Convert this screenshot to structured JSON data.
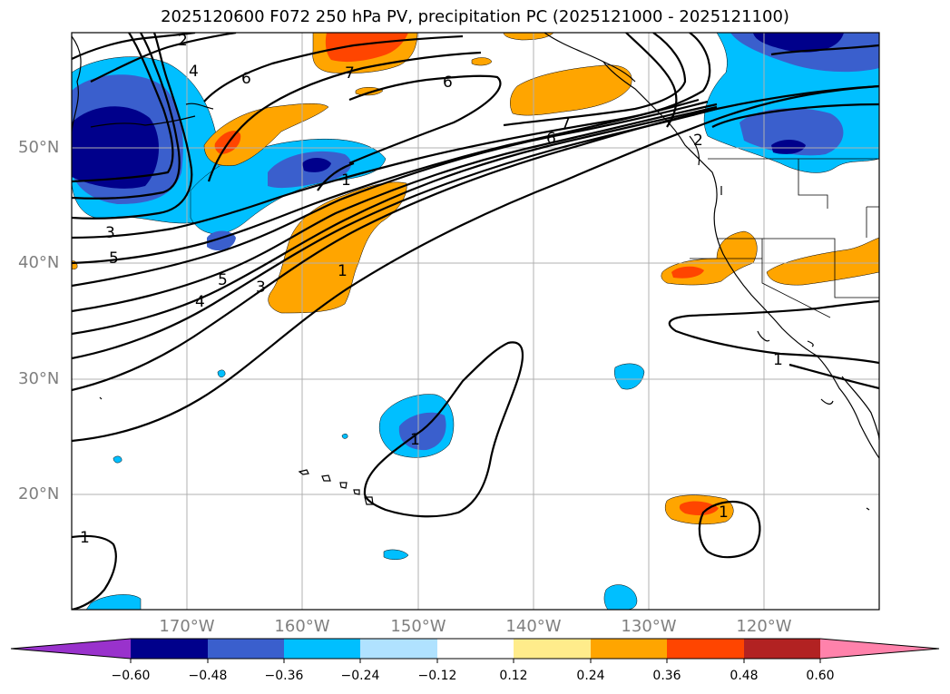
{
  "title": "2025120600 F072 250 hPa PV, precipitation PC (2025121000 - 2025121100)",
  "map": {
    "latitude_labels": [
      "50°N",
      "40°N",
      "30°N",
      "20°N"
    ],
    "longitude_labels": [
      "170°W",
      "160°W",
      "150°W",
      "140°W",
      "130°W",
      "120°W"
    ],
    "pv_contour_labels": [
      "2",
      "4",
      "6",
      "7",
      "6",
      "7",
      "6",
      "2",
      "3",
      "5",
      "1",
      "5",
      "3",
      "4",
      "1",
      "1",
      "1",
      "1",
      "1"
    ]
  },
  "colorbar": {
    "ticks": [
      "−0.60",
      "−0.48",
      "−0.36",
      "−0.24",
      "−0.12",
      "0.12",
      "0.24",
      "0.36",
      "0.48",
      "0.60"
    ],
    "colors": [
      "#9932CC",
      "#00008B",
      "#3A5FCD",
      "#00BFFF",
      "#B0E2FF",
      "#FFFFFF",
      "#FFEC8B",
      "#FFA500",
      "#FF4500",
      "#B22222",
      "#FF82AB"
    ]
  },
  "colors": {
    "strong_negative": "#00008B",
    "negative": "#3A5FCD",
    "weak_negative": "#00BFFF",
    "weak_positive": "#FFA500",
    "positive": "#FF4500",
    "grid": "#b0b0b0"
  }
}
